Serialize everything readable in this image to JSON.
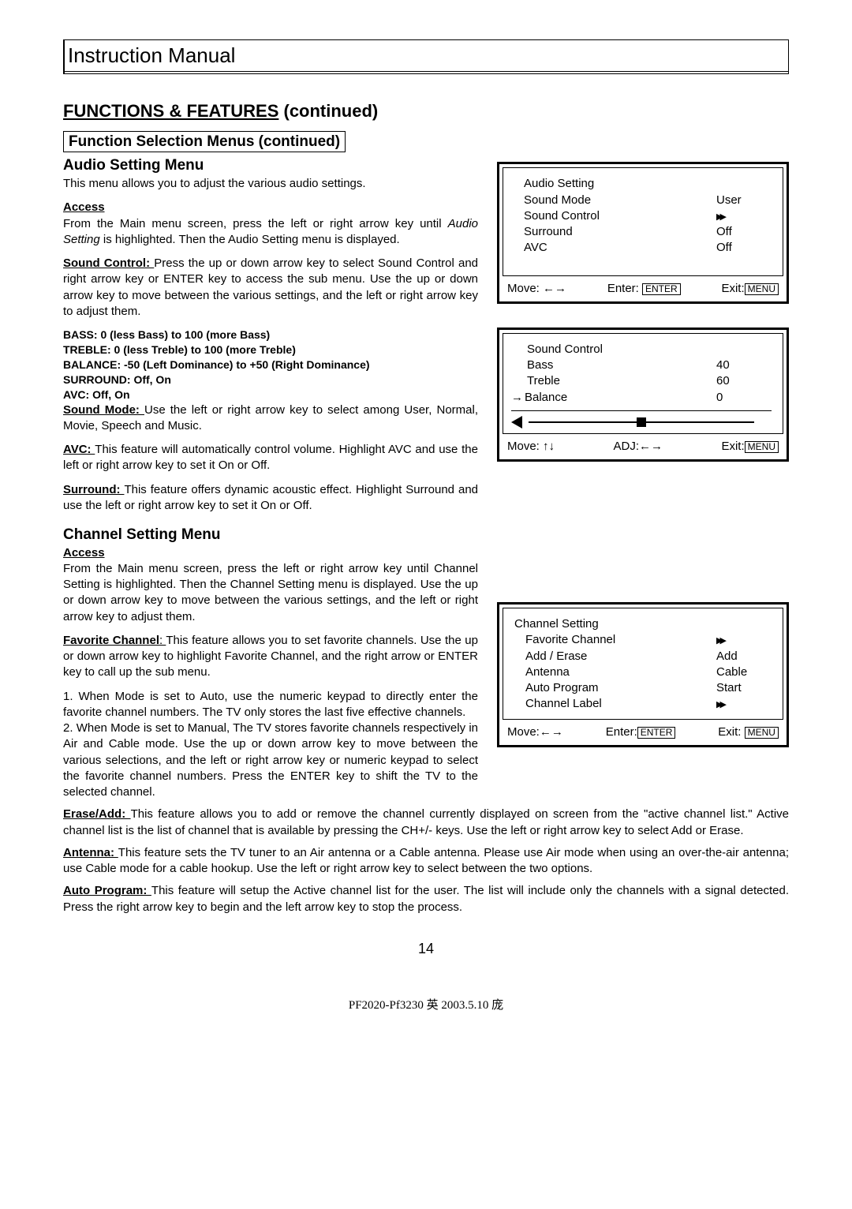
{
  "header": {
    "manual_title": "Instruction Manual"
  },
  "section": {
    "title_underlined": "FUNCTIONS & FEATURES",
    "title_rest": " (continued)",
    "subsection_box": "Function Selection Menus (continued)"
  },
  "audio": {
    "title": "Audio Setting Menu",
    "intro": "This menu allows you to adjust the various audio settings.",
    "access_head": "Access",
    "access_body_1": "From the Main menu screen, press the left or right arrow key until ",
    "access_body_italic": "Audio Setting",
    "access_body_2": " is highlighted. Then the Audio Setting menu is displayed.",
    "sound_control_head": "Sound Control: ",
    "sound_control_body": "Press the up or down arrow key to select Sound Control and right arrow key or ENTER key to access the sub menu. Use the up or down arrow key to move between the various settings, and the left or right arrow key to adjust them.",
    "specs": {
      "bass": "BASS: 0 (less Bass) to 100 (more Bass)",
      "treble": "TREBLE: 0 (less Treble) to 100 (more Treble)",
      "balance": "BALANCE: -50 (Left Dominance) to +50 (Right Dominance)",
      "surround": "SURROUND: Off, On",
      "avc": "AVC: Off, On"
    },
    "sound_mode_head": "Sound Mode: ",
    "sound_mode_body": "Use the left or right arrow key to select among User, Normal, Movie, Speech and Music.",
    "avc_head": "AVC: ",
    "avc_body": "This feature will automatically control volume. Highlight AVC and use the left or right arrow key to set it On or Off.",
    "surround_head": "Surround: ",
    "surround_body": "This feature offers dynamic acoustic effect. Highlight Surround and use the left or right arrow key to set it On or Off."
  },
  "osd_audio": {
    "title": "Audio Setting",
    "rows": [
      {
        "label": "Sound Mode",
        "val": "User"
      },
      {
        "label": "Sound Control",
        "val": "ff"
      },
      {
        "label": "Surround",
        "val": "Off"
      },
      {
        "label": "AVC",
        "val": "Off"
      }
    ],
    "footer": {
      "move": "Move: ←→",
      "enter_label": "Enter: ",
      "enter_key": "ENTER",
      "exit_label": "Exit:",
      "exit_key": "MENU"
    }
  },
  "osd_sound": {
    "title": "Sound Control",
    "rows": [
      {
        "label": "Bass",
        "val": "40"
      },
      {
        "label": "Treble",
        "val": "60"
      },
      {
        "label": "Balance",
        "val": "0",
        "arrow": true
      }
    ],
    "slider_pos_pct": 50,
    "footer": {
      "move": "Move:  ↑↓",
      "adj": "ADJ:←→",
      "exit_label": "Exit:",
      "exit_key": "MENU"
    }
  },
  "channel": {
    "title": "Channel Setting Menu",
    "access_head": "Access",
    "access_body": "From the Main menu screen, press the left or right arrow key until Channel Setting is highlighted. Then the Channel Setting menu is displayed. Use the up or down arrow key to move between the various settings, and the left or right arrow key to adjust them.",
    "fav_head": "Favorite Channel",
    "fav_colon": ": ",
    "fav_body": "This feature allows you to set favorite channels. Use the up or down arrow key to highlight Favorite Channel, and the right arrow or ENTER key to call up the sub menu.",
    "fav_1": "1. When Mode is set to Auto, use the numeric keypad to directly enter the favorite channel numbers. The TV only stores the last five effective channels.",
    "fav_2": "2. When Mode is set to Manual, The TV stores favorite channels respectively in Air and Cable mode. Use the up or down arrow key to move between the various selections, and the left or right arrow key or numeric keypad to select the favorite channel numbers. Press the ENTER key to shift the TV to the selected channel."
  },
  "osd_channel": {
    "title": "Channel Setting",
    "rows": [
      {
        "label": "Favorite Channel",
        "val": "ff"
      },
      {
        "label": "Add / Erase",
        "val": "Add"
      },
      {
        "label": "Antenna",
        "val": "Cable"
      },
      {
        "label": "Auto Program",
        "val": "Start"
      },
      {
        "label": "Channel Label",
        "val": "ff"
      }
    ],
    "footer": {
      "move": "Move:←→",
      "enter_label": "Enter:",
      "enter_key": "ENTER",
      "exit_label": "Exit:",
      "exit_key": "MENU"
    }
  },
  "bottom": {
    "erase_head": "Erase/Add: ",
    "erase_body": "This feature allows you to add or remove the channel currently displayed on screen from the \"active channel list.\" Active channel list is the list of channel that is available by pressing the CH+/- keys. Use the left or right arrow key to select Add or Erase.",
    "antenna_head": "Antenna: ",
    "antenna_body": "This feature sets the TV tuner to an Air antenna or a Cable antenna. Please use Air mode when using an over-the-air antenna; use Cable mode for a cable hookup. Use the left or right arrow key to select between the two options.",
    "auto_head": "Auto Program: ",
    "auto_body": "This feature will setup the Active channel list for the user. The list will include only the channels with a signal detected. Press the right arrow key to begin and the left arrow key to stop the process."
  },
  "page_number": "14",
  "footer_meta": "PF2020-Pf3230   英   2003.5.10   庞"
}
